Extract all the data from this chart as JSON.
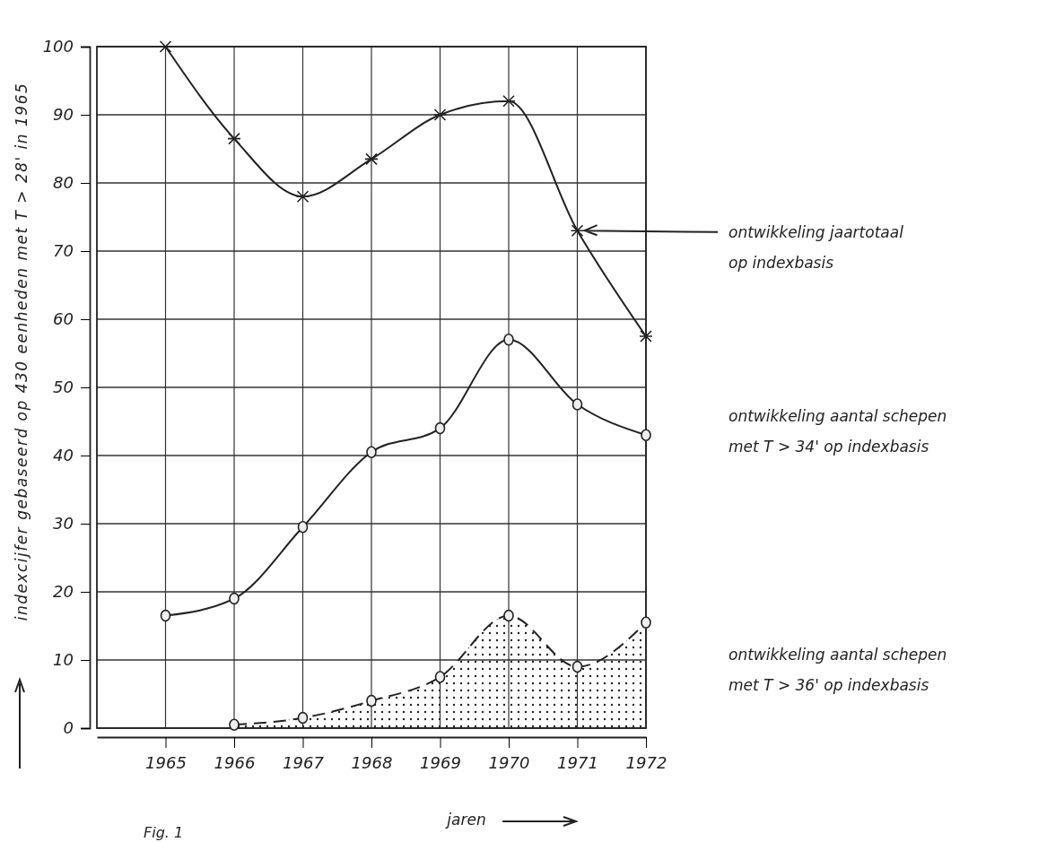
{
  "chart_data": {
    "type": "line",
    "ylabel": "indexcijfer gebaseerd op 430 eenheden met T > 28' in 1965",
    "xlabel": "jaren",
    "x": [
      1965,
      1966,
      1967,
      1968,
      1969,
      1970,
      1971,
      1972
    ],
    "xlim": [
      1964,
      1972
    ],
    "xticks": [
      1965,
      1966,
      1967,
      1968,
      1969,
      1970,
      1971,
      1972
    ],
    "ylim": [
      0,
      100
    ],
    "yticks": [
      0,
      10,
      20,
      30,
      40,
      50,
      60,
      70,
      80,
      90,
      100
    ],
    "grid": true,
    "legend": false,
    "series": [
      {
        "name": "ontwikkeling jaartotaal op indexbasis",
        "color": "#222222",
        "marker": "cross",
        "line_style": "solid",
        "values": [
          100,
          86.5,
          78,
          83.5,
          90,
          92,
          73,
          57.5
        ]
      },
      {
        "name": "ontwikkeling aantal schepen met T > 34' op indexbasis",
        "color": "#222222",
        "marker": "circle",
        "line_style": "solid",
        "values": [
          16.5,
          19,
          29.5,
          40.5,
          44,
          57,
          47.5,
          43
        ]
      },
      {
        "name": "ontwikkeling aantal schepen met T > 36' op indexbasis",
        "type": "area",
        "color": "#222222",
        "marker": "circle",
        "line_style": "dashed",
        "x": [
          1966,
          1967,
          1968,
          1969,
          1970,
          1971,
          1972
        ],
        "values": [
          0.5,
          1.5,
          4,
          7.5,
          16.5,
          9,
          15.5
        ]
      }
    ],
    "annotations": [
      "Fig. 1"
    ]
  }
}
